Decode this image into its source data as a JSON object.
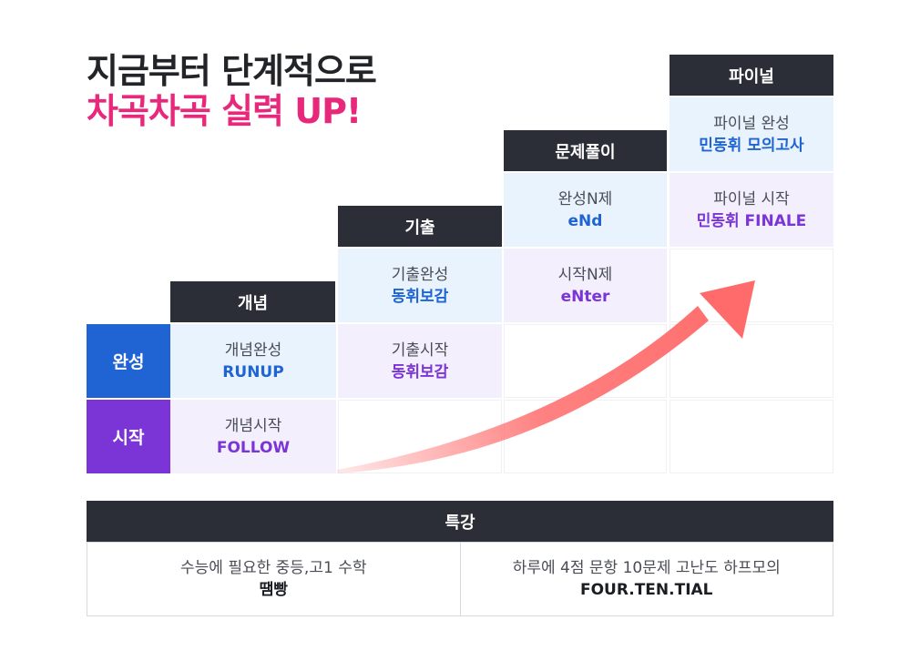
{
  "heading": {
    "line1": "지금부터 단계적으로",
    "line2": "차곡차곡 실력 UP!",
    "line2_color": "#e8287a"
  },
  "colors": {
    "header_bg": "#2b2e36",
    "complete_row": "#1f64d2",
    "start_row": "#7b34d6",
    "blue_text": "#1f64d2",
    "purple_text": "#7b34d6",
    "arrow": "#ff6b6b"
  },
  "rows": {
    "complete": "완성",
    "start": "시작"
  },
  "stages": [
    {
      "name": "개념",
      "complete": {
        "a": "개념완성",
        "b": "RUNUP"
      },
      "start": {
        "a": "개념시작",
        "b": "FOLLOW"
      }
    },
    {
      "name": "기출",
      "complete": {
        "a": "기출완성",
        "b": "동휘보감"
      },
      "start": {
        "a": "기출시작",
        "b": "동휘보감"
      }
    },
    {
      "name": "문제풀이",
      "complete": {
        "a": "완성N제",
        "b": "eNd"
      },
      "start": {
        "a": "시작N제",
        "b": "eNter"
      }
    },
    {
      "name": "파이널",
      "complete": {
        "a": "파이널 완성",
        "b": "민동휘 모의고사"
      },
      "start": {
        "a": "파이널 시작",
        "b": "민동휘 FINALE"
      }
    }
  ],
  "special": {
    "title": "특강",
    "items": [
      {
        "a": "수능에 필요한 중등,고1 수학",
        "b": "땜빵"
      },
      {
        "a": "하루에 4점 문항 10문제 고난도 하프모의",
        "b": "FOUR.TEN.TIAL"
      }
    ]
  },
  "arrow_icon": "rising-arrow-icon"
}
